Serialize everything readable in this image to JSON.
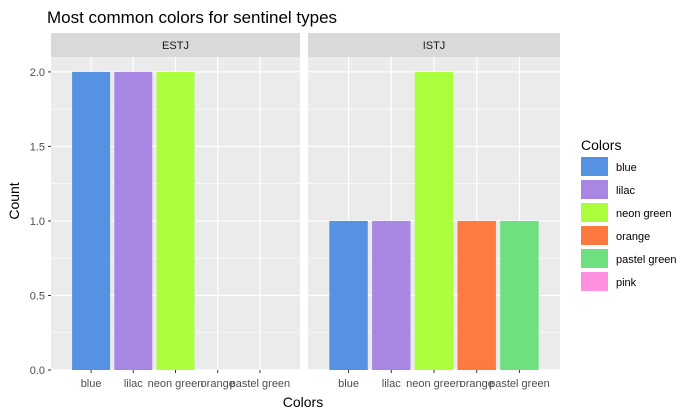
{
  "chart_data": {
    "type": "bar",
    "title": "Most common colors for sentinel types",
    "xlabel": "Colors",
    "ylabel": "Count",
    "ylim": [
      0,
      2.1
    ],
    "yticks": [
      0.0,
      0.5,
      1.0,
      1.5,
      2.0
    ],
    "ytick_labels": [
      "0.0",
      "0.5",
      "1.0",
      "1.5",
      "2.0"
    ],
    "grid": true,
    "categories": [
      "blue",
      "lilac",
      "neon green",
      "orange",
      "pastel green"
    ],
    "panels": [
      {
        "name": "ESTJ",
        "values": [
          2,
          2,
          2,
          0,
          0
        ]
      },
      {
        "name": "ISTJ",
        "values": [
          1,
          1,
          2,
          1,
          1
        ]
      }
    ],
    "legend": {
      "title": "Colors",
      "position": "right",
      "items": [
        {
          "label": "blue",
          "color": "#5593E2"
        },
        {
          "label": "lilac",
          "color": "#A887E4"
        },
        {
          "label": "neon green",
          "color": "#ABFF3C"
        },
        {
          "label": "orange",
          "color": "#FF7A3E"
        },
        {
          "label": "pastel green",
          "color": "#6FE07F"
        },
        {
          "label": "pink",
          "color": "#FF8FE0"
        }
      ]
    },
    "colors": {
      "panel_background": "#EBEBEB",
      "strip_background": "#D9D9D9",
      "grid": "#FFFFFF"
    }
  }
}
